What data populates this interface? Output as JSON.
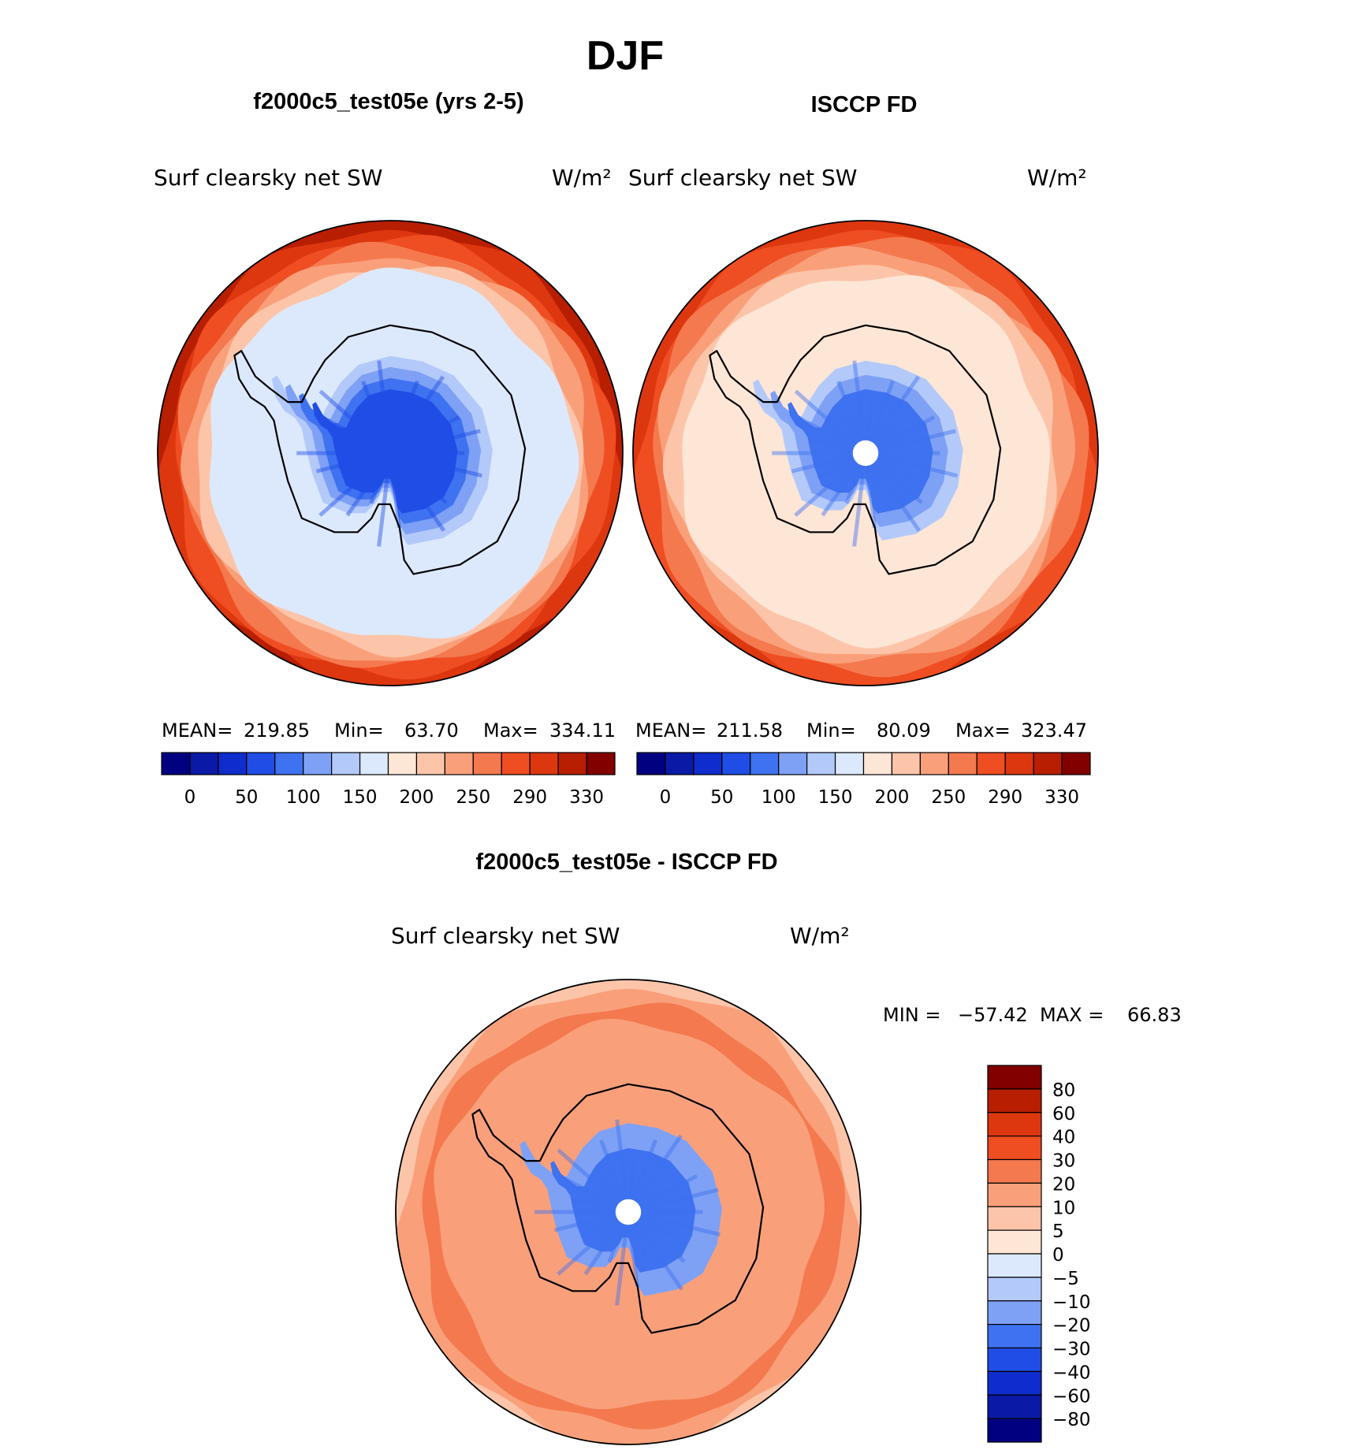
{
  "page": {
    "season": "DJF",
    "panel_top_left_title": "f2000c5_test05e (yrs 2-5)",
    "panel_top_right_title": "ISCCP FD",
    "panel_bottom_title": "f2000c5_test05e - ISCCP FD"
  },
  "chart_data": [
    {
      "type": "heatmap",
      "projection": "south-polar-stereographic",
      "region": "Antarctica",
      "title": "f2000c5_test05e (yrs 2-5)",
      "variable": "Surf clearsky net SW",
      "units": "W/m²",
      "stats": {
        "mean_label": "MEAN=",
        "mean": "219.85",
        "min_label": "Min=",
        "min": "63.70",
        "max_label": "Max=",
        "max": "334.11"
      },
      "colorbar": {
        "orientation": "horizontal",
        "colors": [
          "#000080",
          "#0a1aa6",
          "#0f2ccc",
          "#1f4de6",
          "#3f72f0",
          "#7ea1f5",
          "#b3c9fa",
          "#dce9fc",
          "#fde6d6",
          "#fcc5aa",
          "#f9a07a",
          "#f4794e",
          "#ef4d22",
          "#dd3710",
          "#b81e00",
          "#830000"
        ],
        "tick_labels": [
          "0",
          "50",
          "100",
          "150",
          "200",
          "250",
          "290",
          "330"
        ]
      },
      "field_levels_outward": [
        75,
        110,
        135,
        160,
        190,
        230,
        260,
        280,
        295,
        310,
        330
      ]
    },
    {
      "type": "heatmap",
      "projection": "south-polar-stereographic",
      "region": "Antarctica",
      "title": "ISCCP FD",
      "variable": "Surf clearsky net SW",
      "units": "W/m²",
      "stats": {
        "mean_label": "MEAN=",
        "mean": "211.58",
        "min_label": "Min=",
        "min": "80.09",
        "max_label": "Max=",
        "max": "323.47"
      },
      "colorbar": {
        "orientation": "horizontal",
        "colors": [
          "#000080",
          "#0a1aa6",
          "#0f2ccc",
          "#1f4de6",
          "#3f72f0",
          "#7ea1f5",
          "#b3c9fa",
          "#dce9fc",
          "#fde6d6",
          "#fcc5aa",
          "#f9a07a",
          "#f4794e",
          "#ef4d22",
          "#dd3710",
          "#b81e00",
          "#830000"
        ],
        "tick_labels": [
          "0",
          "50",
          "100",
          "150",
          "200",
          "250",
          "290",
          "330"
        ]
      },
      "field_levels_outward": [
        110,
        140,
        170,
        210,
        235,
        260,
        280,
        300,
        315
      ]
    },
    {
      "type": "heatmap",
      "projection": "south-polar-stereographic",
      "region": "Antarctica",
      "title": "f2000c5_test05e - ISCCP FD",
      "variable": "Surf clearsky net SW",
      "units": "W/m²",
      "stats": {
        "min_label": "MIN =",
        "min": "−57.42",
        "max_label": "MAX =",
        "max": "66.83"
      },
      "colorbar": {
        "orientation": "vertical",
        "colors": [
          "#000080",
          "#0a1aa6",
          "#0f2ccc",
          "#1f4de6",
          "#3f72f0",
          "#7ea1f5",
          "#b3c9fa",
          "#dce9fc",
          "#fde6d6",
          "#fcc5aa",
          "#f9a07a",
          "#f4794e",
          "#ef4d22",
          "#dd3710",
          "#b81e00",
          "#830000"
        ],
        "tick_labels": [
          "80",
          "60",
          "40",
          "30",
          "20",
          "10",
          "5",
          "0",
          "−5",
          "−10",
          "−20",
          "−30",
          "−40",
          "−60",
          "−80"
        ]
      },
      "field_levels_outward": [
        -25,
        -15,
        15,
        25,
        10,
        5
      ]
    }
  ]
}
